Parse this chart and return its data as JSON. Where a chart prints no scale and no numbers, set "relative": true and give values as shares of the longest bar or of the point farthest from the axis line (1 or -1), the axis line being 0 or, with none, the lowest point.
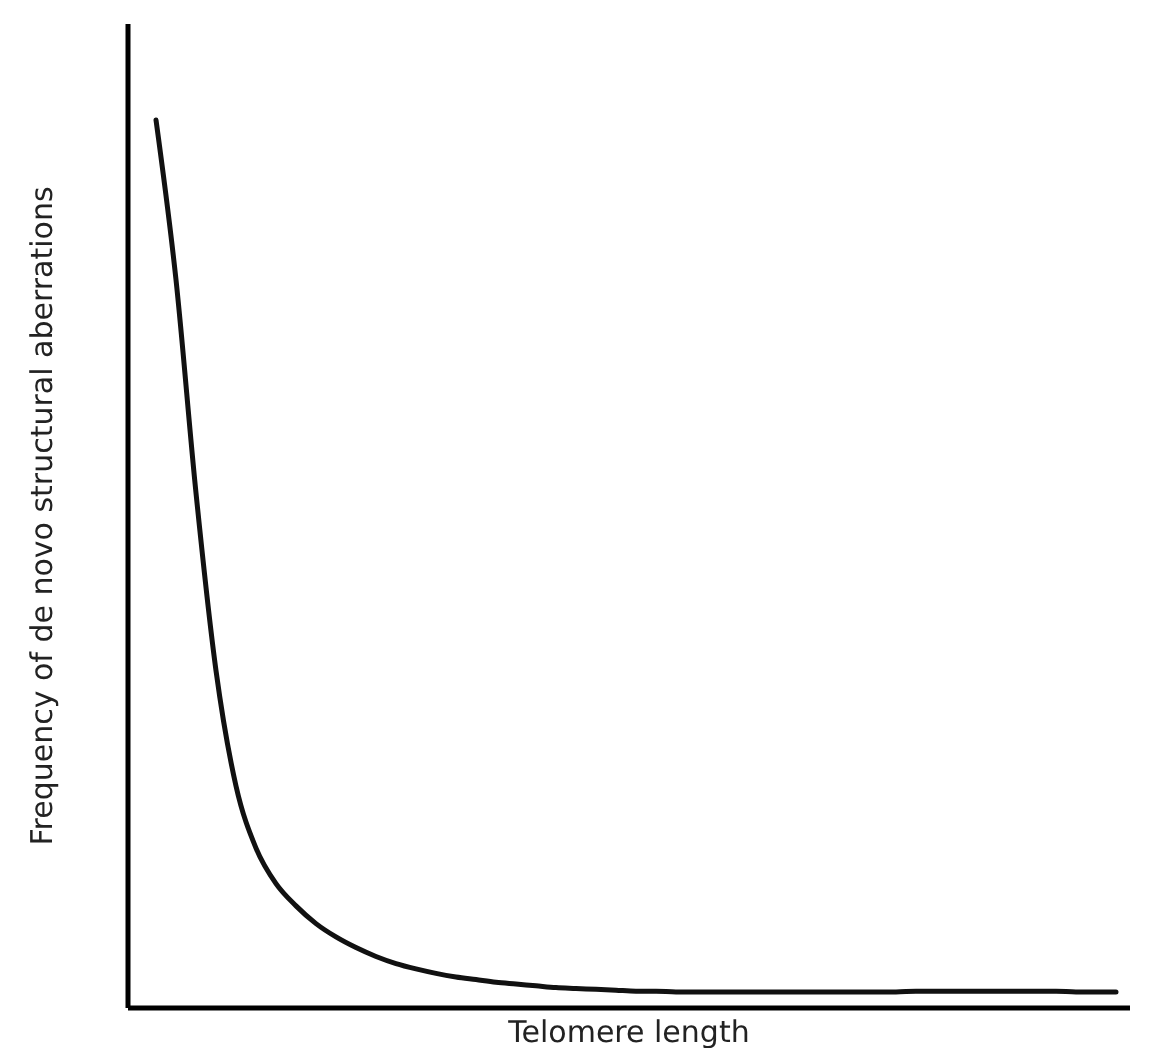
{
  "chart_data": {
    "type": "line",
    "xlabel": "Telomere length",
    "ylabel": "Frequency of de novo structural aberrations",
    "relative": true,
    "categories": [
      null,
      null,
      null,
      null,
      null,
      null,
      null,
      null,
      null,
      null,
      null,
      null,
      null,
      null,
      null,
      null,
      null,
      null,
      null,
      null,
      null,
      null,
      null,
      null,
      null,
      null,
      null,
      null,
      null,
      null,
      null,
      null,
      null,
      null,
      null,
      null,
      null,
      null,
      null,
      null,
      null,
      null,
      null,
      null,
      null,
      null,
      null,
      null,
      null
    ],
    "series": [
      {
        "color": "#111111",
        "values": [
          1,
          0.82,
          0.58,
          0.38,
          0.25,
          0.18,
          0.14,
          0.115,
          0.095,
          0.08,
          0.068,
          0.058,
          0.05,
          0.044,
          0.039,
          0.035,
          0.032,
          0.029,
          0.027,
          0.025,
          0.023,
          0.022,
          0.021,
          0.02,
          0.019,
          0.019,
          0.018,
          0.018,
          0.018,
          0.018,
          0.018,
          0.018,
          0.018,
          0.018,
          0.018,
          0.018,
          0.018,
          0.018,
          0.019,
          0.019,
          0.019,
          0.019,
          0.019,
          0.019,
          0.019,
          0.019,
          0.018,
          0.018,
          0.018
        ]
      }
    ],
    "marker": "none",
    "line_style": "solid"
  }
}
